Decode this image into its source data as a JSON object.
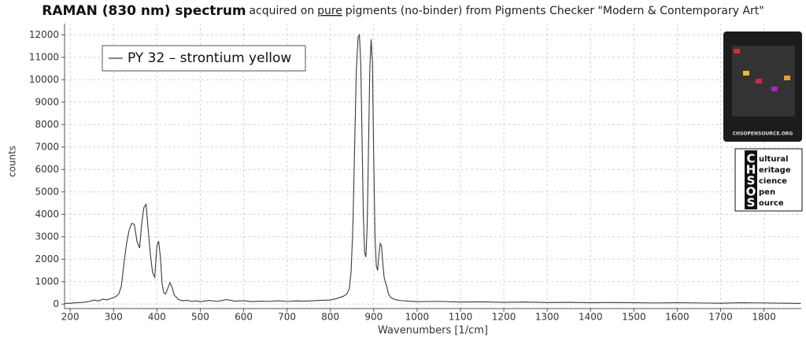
{
  "chart_data": {
    "type": "line",
    "title": [
      "RAMAN (830 nm) spectrum",
      "acquired on",
      "pure",
      "pigments (no-binder) from Pigments Checker \"Modern & Contemporary Art\""
    ],
    "x_label": "Wavenumbers [1/cm]",
    "y_label": "counts",
    "x": [
      188,
      200,
      215,
      230,
      245,
      255,
      265,
      275,
      285,
      295,
      305,
      312,
      318,
      324,
      330,
      336,
      342,
      348,
      354,
      360,
      365,
      370,
      375,
      380,
      385,
      390,
      395,
      400,
      404,
      408,
      412,
      416,
      420,
      425,
      430,
      435,
      440,
      450,
      460,
      470,
      480,
      490,
      500,
      520,
      540,
      560,
      580,
      600,
      620,
      640,
      660,
      680,
      700,
      720,
      740,
      760,
      780,
      800,
      815,
      830,
      838,
      844,
      848,
      852,
      856,
      860,
      864,
      867,
      870,
      873,
      876,
      879,
      882,
      885,
      888,
      891,
      894,
      897,
      900,
      903,
      906,
      909,
      912,
      915,
      918,
      921,
      924,
      927,
      930,
      934,
      940,
      950,
      960,
      980,
      1000,
      1050,
      1100,
      1150,
      1200,
      1250,
      1300,
      1350,
      1400,
      1450,
      1500,
      1550,
      1600,
      1650,
      1700,
      1750,
      1800,
      1850,
      1885
    ],
    "series": [
      {
        "name": "PY 32 – strontium yellow",
        "color": "#3a3a3a",
        "values": [
          30,
          40,
          60,
          80,
          120,
          180,
          140,
          220,
          190,
          260,
          330,
          450,
          800,
          1800,
          2700,
          3300,
          3600,
          3550,
          2800,
          2500,
          3600,
          4300,
          4450,
          3300,
          2200,
          1400,
          1200,
          2600,
          2800,
          2100,
          900,
          500,
          450,
          700,
          950,
          750,
          400,
          200,
          150,
          170,
          120,
          140,
          110,
          160,
          120,
          200,
          130,
          150,
          110,
          130,
          120,
          150,
          120,
          140,
          130,
          150,
          170,
          180,
          250,
          350,
          450,
          700,
          1500,
          3500,
          7000,
          10500,
          11900,
          12000,
          10800,
          7500,
          4000,
          2300,
          2100,
          3500,
          7000,
          10500,
          11800,
          10800,
          6500,
          3000,
          1700,
          1500,
          2200,
          2700,
          2600,
          1800,
          1200,
          950,
          800,
          450,
          280,
          200,
          160,
          130,
          110,
          120,
          90,
          100,
          80,
          90,
          70,
          80,
          60,
          70,
          60,
          50,
          60,
          50,
          40,
          60,
          50,
          40,
          30
        ]
      }
    ],
    "xlim": [
      187,
      1886
    ],
    "ylim": [
      -200,
      12500
    ],
    "xticks": [
      200,
      300,
      400,
      500,
      600,
      700,
      800,
      900,
      1000,
      1100,
      1200,
      1300,
      1400,
      1500,
      1600,
      1700,
      1800
    ],
    "yticks": [
      0,
      1000,
      2000,
      3000,
      4000,
      5000,
      6000,
      7000,
      8000,
      9000,
      10000,
      11000,
      12000
    ],
    "grid": true,
    "legend": "upper-left"
  },
  "logo": {
    "letters": [
      "C",
      "H",
      "S",
      "O",
      "S"
    ],
    "words": [
      "ultural",
      "eritage",
      "cience",
      "pen",
      "ource"
    ],
    "site": "CHSOPENSOURCE.ORG"
  }
}
